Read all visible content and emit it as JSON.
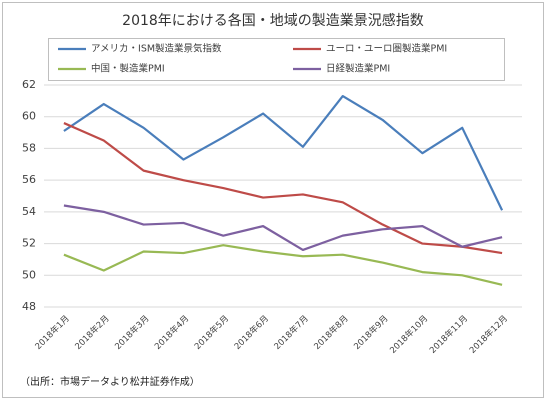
{
  "chart_data": {
    "type": "line",
    "title": "2018年における各国・地域の製造業景況感指数",
    "categories": [
      "2018年1月",
      "2018年2月",
      "2018年3月",
      "2018年4月",
      "2018年5月",
      "2018年6月",
      "2018年7月",
      "2018年8月",
      "2018年9月",
      "2018年10月",
      "2018年11月",
      "2018年12月"
    ],
    "series": [
      {
        "name": "アメリカ・ISM製造業景気指数",
        "color": "#4a7ebb",
        "values": [
          59.1,
          60.8,
          59.3,
          57.3,
          58.7,
          60.2,
          58.1,
          61.3,
          59.8,
          57.7,
          59.3,
          54.1
        ]
      },
      {
        "name": "ユーロ・ユーロ圏製造業PMI",
        "color": "#be4b48",
        "values": [
          59.6,
          58.5,
          56.6,
          56.0,
          55.5,
          54.9,
          55.1,
          54.6,
          53.2,
          52.0,
          51.8,
          51.4
        ]
      },
      {
        "name": "中国・製造業PMI",
        "color": "#98b954",
        "values": [
          51.3,
          50.3,
          51.5,
          51.4,
          51.9,
          51.5,
          51.2,
          51.3,
          50.8,
          50.2,
          50.0,
          49.4
        ]
      },
      {
        "name": "日経製造業PMI",
        "color": "#7d60a0",
        "values": [
          54.4,
          54.0,
          53.2,
          53.3,
          52.5,
          53.1,
          51.6,
          52.5,
          52.9,
          53.1,
          51.8,
          52.4
        ]
      }
    ],
    "ylim": [
      48,
      62
    ],
    "yticks": [
      48,
      50,
      52,
      54,
      56,
      58,
      60,
      62
    ],
    "grid": true,
    "note": "（出所：市場データより松井証券作成）"
  }
}
